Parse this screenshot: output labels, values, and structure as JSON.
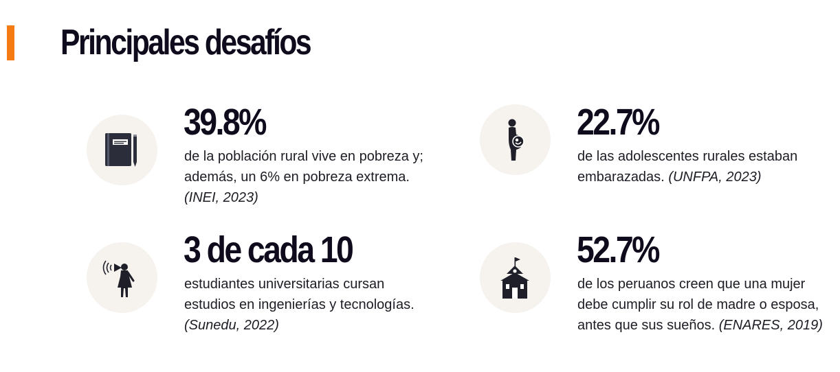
{
  "header": {
    "title": "Principales desafíos",
    "accent_color": "#f47b13"
  },
  "stats": [
    {
      "value": "39.8%",
      "lines": [
        "de la población rural vive en pobreza y;",
        "además, un 6% en pobreza extrema."
      ],
      "source": "(INEI, 2023)",
      "icon": "notebook-icon"
    },
    {
      "value": "22.7%",
      "lines": [
        "de las adolescentes rurales estaban",
        "embarazadas."
      ],
      "source": "(UNFPA, 2023)",
      "icon": "pregnant-girl-icon"
    },
    {
      "value": "3 de cada 10",
      "lines": [
        "estudiantes universitarias cursan",
        "estudios en ingenierías y tecnologías."
      ],
      "source": "(Sunedu, 2022)",
      "icon": "woman-megaphone-icon"
    },
    {
      "value": "52.7%",
      "lines": [
        "de los peruanos creen que una mujer",
        "debe cumplir su rol de madre o esposa,",
        "antes que sus sueños."
      ],
      "source": "(ENARES, 2019)",
      "icon": "school-building-icon"
    }
  ],
  "colors": {
    "circle_bg": "#f6f3ef",
    "text_dark": "#0f0b1c"
  }
}
